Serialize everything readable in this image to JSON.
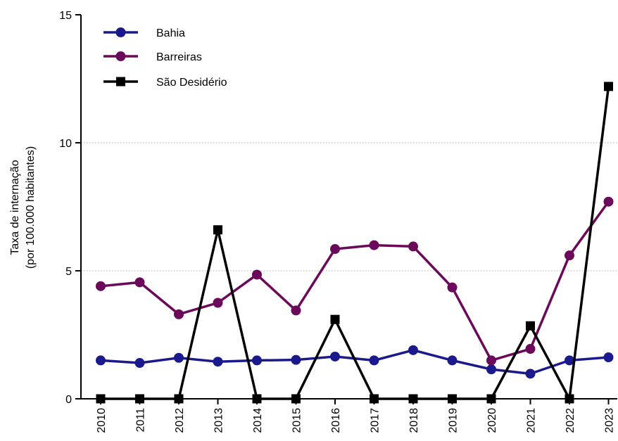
{
  "chart_data": {
    "type": "line",
    "x": [
      "2010",
      "2011",
      "2012",
      "2013",
      "2014",
      "2015",
      "2016",
      "2017",
      "2018",
      "2019",
      "2020",
      "2021",
      "2022",
      "2023"
    ],
    "ylabel": [
      "Taxa de internação",
      "(por 100.000 habitantes)"
    ],
    "ylim": [
      0,
      15
    ],
    "yticks": [
      0,
      5,
      10,
      15
    ],
    "grid": "horizontal dotted at 5 and 10",
    "legend_position": "top-left",
    "series": [
      {
        "name": "Bahia",
        "color": "#1a1a8c",
        "marker": "circle",
        "values": [
          1.5,
          1.4,
          1.6,
          1.45,
          1.5,
          1.52,
          1.65,
          1.5,
          1.9,
          1.5,
          1.15,
          0.98,
          1.5,
          1.62
        ]
      },
      {
        "name": "Barreiras",
        "color": "#6b0a5a",
        "marker": "circle",
        "values": [
          4.4,
          4.55,
          3.3,
          3.75,
          4.85,
          3.45,
          5.85,
          6.0,
          5.95,
          4.35,
          1.5,
          1.95,
          5.6,
          7.7
        ]
      },
      {
        "name": "São Desidério",
        "color": "#000000",
        "marker": "square",
        "values": [
          0,
          0,
          0,
          6.6,
          0,
          0,
          3.1,
          0,
          0,
          0,
          0,
          2.85,
          0,
          12.2
        ]
      }
    ]
  }
}
